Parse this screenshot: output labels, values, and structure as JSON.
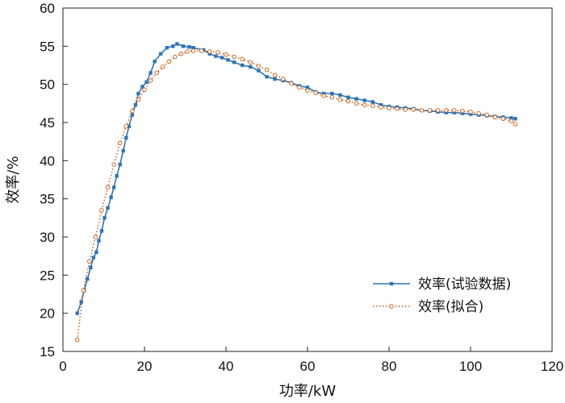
{
  "chart_data": {
    "type": "line",
    "title": "",
    "xlabel": "功率/kW",
    "ylabel": "效率/%",
    "xlim": [
      0,
      120
    ],
    "ylim": [
      15,
      60
    ],
    "xticks": [
      "0",
      "20",
      "40",
      "60",
      "80",
      "100",
      "120"
    ],
    "yticks": [
      "15",
      "20",
      "25",
      "30",
      "35",
      "40",
      "45",
      "50",
      "55",
      "60"
    ],
    "grid": false,
    "legend": "lower-right",
    "series": [
      {
        "name": "效率(试验数据)",
        "color": "#2e75b6",
        "style": "solid-square-markers",
        "x": [
          3.5,
          4.5,
          5.2,
          6.0,
          6.8,
          7.5,
          8.2,
          8.8,
          9.5,
          10.2,
          11.0,
          11.8,
          12.5,
          13.2,
          14.0,
          14.8,
          15.5,
          16.2,
          17.0,
          17.8,
          18.5,
          19.5,
          20.5,
          21.5,
          22.5,
          24.0,
          25.5,
          27.0,
          28.0,
          29.5,
          31.0,
          32.0,
          34.5,
          36.0,
          37.5,
          39.0,
          40.5,
          42.0,
          44.0,
          46.0,
          48.0,
          50.0,
          52.0,
          54.0,
          56.0,
          58.0,
          60.0,
          62.0,
          64.0,
          66.0,
          68.0,
          70.0,
          72.0,
          74.0,
          76.0,
          78.0,
          80.0,
          82.0,
          84.0,
          86.0,
          88.0,
          90.0,
          92.0,
          94.0,
          96.0,
          98.0,
          100.0,
          102.0,
          104.0,
          106.0,
          108.0,
          110.0,
          111.0
        ],
        "y": [
          20.0,
          21.5,
          23.0,
          24.5,
          26.0,
          27.3,
          28.0,
          29.5,
          30.8,
          32.5,
          33.8,
          35.2,
          36.5,
          38.0,
          39.5,
          41.3,
          43.0,
          44.5,
          46.0,
          47.3,
          48.8,
          49.7,
          50.3,
          51.5,
          53.0,
          54.0,
          54.8,
          55.0,
          55.3,
          55.0,
          54.9,
          54.8,
          54.5,
          54.0,
          53.7,
          53.5,
          53.2,
          52.9,
          52.5,
          52.3,
          51.8,
          51.0,
          50.7,
          50.5,
          50.2,
          49.8,
          49.6,
          49.0,
          48.8,
          48.8,
          48.6,
          48.3,
          48.1,
          47.9,
          47.7,
          47.3,
          47.1,
          47.0,
          46.9,
          46.8,
          46.6,
          46.5,
          46.4,
          46.3,
          46.3,
          46.2,
          46.1,
          46.0,
          45.9,
          45.8,
          45.7,
          45.6,
          45.5
        ]
      },
      {
        "name": "效率(拟合)",
        "color": "#c55a11",
        "style": "dotted-circle-markers",
        "x": [
          3.5,
          5.0,
          6.5,
          8.0,
          9.5,
          11.0,
          12.5,
          14.0,
          15.5,
          17.0,
          18.5,
          20.0,
          21.5,
          23.0,
          24.5,
          26.0,
          27.5,
          29.0,
          30.5,
          32.0,
          34.0,
          36.0,
          38.0,
          40.0,
          42.0,
          44.0,
          46.0,
          48.0,
          50.0,
          52.0,
          54.0,
          56.0,
          58.0,
          60.0,
          62.0,
          64.0,
          66.0,
          68.0,
          70.0,
          72.0,
          74.0,
          76.0,
          78.0,
          80.0,
          82.0,
          84.0,
          86.0,
          88.0,
          90.0,
          92.0,
          94.0,
          96.0,
          98.0,
          100.0,
          102.0,
          104.0,
          106.0,
          108.0,
          110.0,
          111.0
        ],
        "y": [
          16.5,
          23.0,
          26.8,
          30.0,
          33.5,
          36.5,
          39.5,
          42.3,
          44.5,
          46.5,
          48.0,
          49.3,
          50.5,
          51.5,
          52.3,
          53.0,
          53.6,
          54.0,
          54.3,
          54.4,
          54.4,
          54.3,
          54.2,
          53.9,
          53.6,
          53.3,
          52.9,
          52.4,
          51.9,
          51.2,
          50.7,
          50.1,
          49.6,
          49.2,
          48.9,
          48.5,
          48.3,
          48.0,
          47.8,
          47.5,
          47.3,
          47.2,
          47.0,
          46.9,
          46.8,
          46.7,
          46.7,
          46.6,
          46.6,
          46.6,
          46.6,
          46.6,
          46.5,
          46.4,
          46.2,
          46.0,
          45.7,
          45.5,
          45.2,
          44.8
        ]
      }
    ]
  }
}
